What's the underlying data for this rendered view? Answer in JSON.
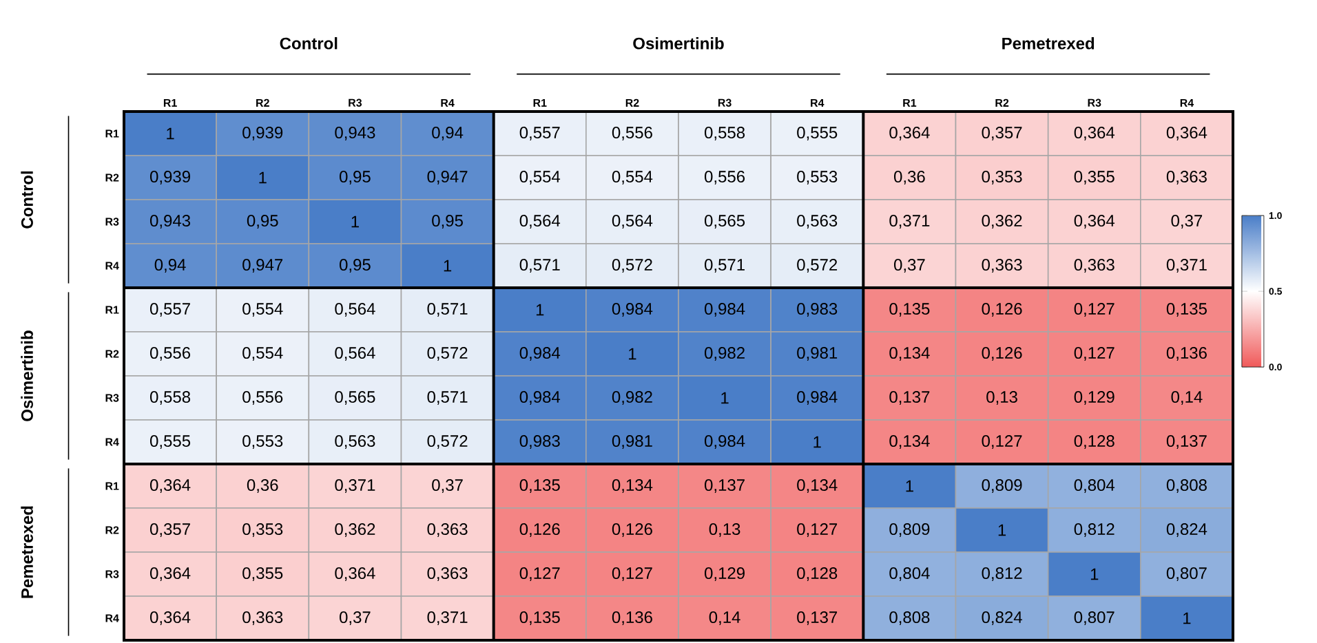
{
  "chart_data": {
    "type": "heatmap",
    "categories": [
      "R1",
      "R2",
      "R3",
      "R4",
      "R1",
      "R2",
      "R3",
      "R4",
      "R1",
      "R2",
      "R3",
      "R4"
    ],
    "y_categories": [
      "R1",
      "R2",
      "R3",
      "R4",
      "R1",
      "R2",
      "R3",
      "R4",
      "R1",
      "R2",
      "R3",
      "R4"
    ],
    "annotations": [
      "Control",
      "Osimertinib",
      "Pemetrexed",
      "Control",
      "Osimertinib",
      "Pemetrexed"
    ],
    "cells": [
      [
        1,
        0.939,
        0.943,
        0.94,
        0.557,
        0.556,
        0.558,
        0.555,
        0.364,
        0.357,
        0.364,
        0.364
      ],
      [
        0.939,
        1,
        0.95,
        0.947,
        0.554,
        0.554,
        0.556,
        0.553,
        0.36,
        0.353,
        0.355,
        0.363
      ],
      [
        0.943,
        0.95,
        1,
        0.95,
        0.564,
        0.564,
        0.565,
        0.563,
        0.371,
        0.362,
        0.364,
        0.37
      ],
      [
        0.94,
        0.947,
        0.95,
        1,
        0.571,
        0.572,
        0.571,
        0.572,
        0.37,
        0.363,
        0.363,
        0.371
      ],
      [
        0.557,
        0.554,
        0.564,
        0.571,
        1,
        0.984,
        0.984,
        0.983,
        0.135,
        0.126,
        0.127,
        0.135
      ],
      [
        0.556,
        0.554,
        0.564,
        0.572,
        0.984,
        1,
        0.982,
        0.981,
        0.134,
        0.126,
        0.127,
        0.136
      ],
      [
        0.558,
        0.556,
        0.565,
        0.571,
        0.984,
        0.982,
        1,
        0.984,
        0.137,
        0.13,
        0.129,
        0.14
      ],
      [
        0.555,
        0.553,
        0.563,
        0.572,
        0.983,
        0.981,
        0.984,
        1,
        0.134,
        0.127,
        0.128,
        0.137
      ],
      [
        0.364,
        0.36,
        0.371,
        0.37,
        0.135,
        0.134,
        0.137,
        0.134,
        1,
        0.809,
        0.804,
        0.808
      ],
      [
        0.357,
        0.353,
        0.362,
        0.363,
        0.126,
        0.126,
        0.13,
        0.127,
        0.809,
        1,
        0.812,
        0.824
      ],
      [
        0.364,
        0.355,
        0.364,
        0.363,
        0.127,
        0.127,
        0.129,
        0.128,
        0.804,
        0.812,
        1,
        0.807
      ],
      [
        0.364,
        0.363,
        0.37,
        0.371,
        0.135,
        0.136,
        0.14,
        0.137,
        0.808,
        0.824,
        0.807,
        1
      ]
    ],
    "cell_labels": [
      [
        "1",
        "0,939",
        "0,943",
        "0,94",
        "0,557",
        "0,556",
        "0,558",
        "0,555",
        "0,364",
        "0,357",
        "0,364",
        "0,364"
      ],
      [
        "0,939",
        "1",
        "0,95",
        "0,947",
        "0,554",
        "0,554",
        "0,556",
        "0,553",
        "0,36",
        "0,353",
        "0,355",
        "0,363"
      ],
      [
        "0,943",
        "0,95",
        "1",
        "0,95",
        "0,564",
        "0,564",
        "0,565",
        "0,563",
        "0,371",
        "0,362",
        "0,364",
        "0,37"
      ],
      [
        "0,94",
        "0,947",
        "0,95",
        "1",
        "0,571",
        "0,572",
        "0,571",
        "0,572",
        "0,37",
        "0,363",
        "0,363",
        "0,371"
      ],
      [
        "0,557",
        "0,554",
        "0,564",
        "0,571",
        "1",
        "0,984",
        "0,984",
        "0,983",
        "0,135",
        "0,126",
        "0,127",
        "0,135"
      ],
      [
        "0,556",
        "0,554",
        "0,564",
        "0,572",
        "0,984",
        "1",
        "0,982",
        "0,981",
        "0,134",
        "0,126",
        "0,127",
        "0,136"
      ],
      [
        "0,558",
        "0,556",
        "0,565",
        "0,571",
        "0,984",
        "0,982",
        "1",
        "0,984",
        "0,137",
        "0,13",
        "0,129",
        "0,14"
      ],
      [
        "0,555",
        "0,553",
        "0,563",
        "0,572",
        "0,983",
        "0,981",
        "0,984",
        "1",
        "0,134",
        "0,127",
        "0,128",
        "0,137"
      ],
      [
        "0,364",
        "0,36",
        "0,371",
        "0,37",
        "0,135",
        "0,134",
        "0,137",
        "0,134",
        "1",
        "0,809",
        "0,804",
        "0,808"
      ],
      [
        "0,357",
        "0,353",
        "0,362",
        "0,363",
        "0,126",
        "0,126",
        "0,13",
        "0,127",
        "0,809",
        "1",
        "0,812",
        "0,824"
      ],
      [
        "0,364",
        "0,355",
        "0,364",
        "0,363",
        "0,127",
        "0,127",
        "0,129",
        "0,128",
        "0,804",
        "0,812",
        "1",
        "0,807"
      ],
      [
        "0,364",
        "0,363",
        "0,37",
        "0,371",
        "0,135",
        "0,136",
        "0,14",
        "0,137",
        "0,808",
        "0,824",
        "0,807",
        "1"
      ]
    ],
    "clim": [
      0,
      1
    ],
    "cticks": [
      {
        "value": 0,
        "label": "0.0"
      },
      {
        "value": 0.5,
        "label": "0.5"
      },
      {
        "value": 1,
        "label": "1.0"
      }
    ]
  }
}
